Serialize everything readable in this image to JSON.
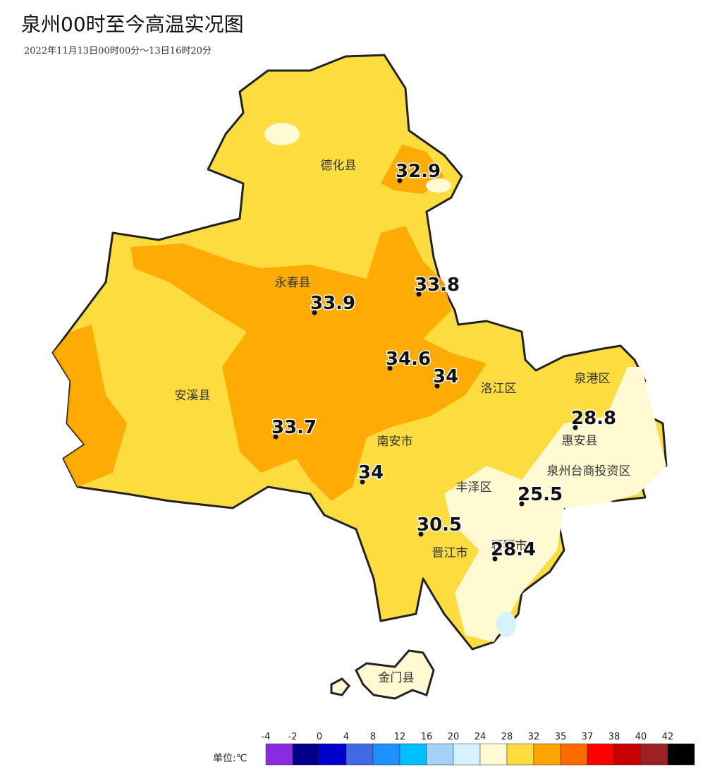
{
  "header": {
    "title": "泉州00时至今高温实况图",
    "subtitle": "2022年11月13日00时00分～13日16时20分"
  },
  "map": {
    "districts": [
      {
        "label": "德化县"
      },
      {
        "label": "永春县"
      },
      {
        "label": "安溪县"
      },
      {
        "label": "南安市"
      },
      {
        "label": "洛江区"
      },
      {
        "label": "泉港区"
      },
      {
        "label": "惠安县"
      },
      {
        "label": "泉州台商投资区"
      },
      {
        "label": "丰泽区"
      },
      {
        "label": "晋江市"
      },
      {
        "label": "石狮市"
      },
      {
        "label": "金门县"
      }
    ],
    "stations": [
      {
        "value": 32.9
      },
      {
        "value": 33.8
      },
      {
        "value": 33.9
      },
      {
        "value": 34.6
      },
      {
        "value": 34
      },
      {
        "value": 33.7
      },
      {
        "value": 34
      },
      {
        "value": 28.8
      },
      {
        "value": 25.5
      },
      {
        "value": 30.5
      },
      {
        "value": 28.4
      }
    ]
  },
  "legend": {
    "unit": "单位:℃",
    "ticks": [
      -4,
      -2,
      0,
      4,
      8,
      12,
      16,
      20,
      24,
      28,
      32,
      35,
      37,
      38,
      40,
      42
    ],
    "colors": [
      "#8a2be2",
      "#00008b",
      "#0000cd",
      "#4169e1",
      "#1e90ff",
      "#00bfff",
      "#a3d3f7",
      "#d6f2fc",
      "#fffad2",
      "#fddc3f",
      "#ffa500",
      "#ff6a00",
      "#ff0000",
      "#c80000",
      "#9b2222",
      "#000000"
    ]
  }
}
